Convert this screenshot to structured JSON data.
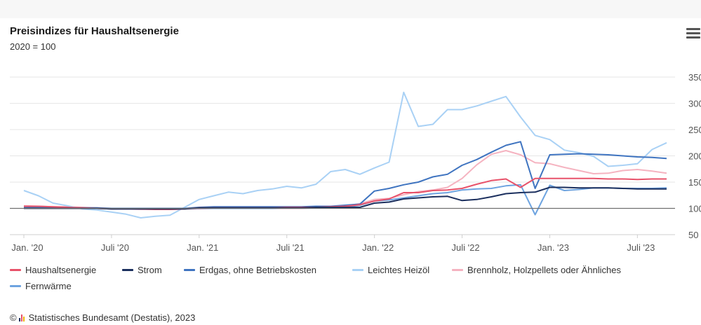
{
  "header": {
    "title": "Preisindizes für Haushaltsenergie",
    "subtitle": "2020 = 100"
  },
  "menu_icon": "hamburger-menu-icon",
  "footer": {
    "copyright_symbol": "©",
    "logo_icon": "destatis-logo-icon",
    "source": "Statistisches Bundesamt (Destatis), 2023"
  },
  "chart_data": {
    "type": "line",
    "title": "Preisindizes für Haushaltsenergie",
    "subtitle": "2020 = 100",
    "xlabel": "",
    "ylabel": "",
    "x": [
      "2020-01",
      "2020-02",
      "2020-03",
      "2020-04",
      "2020-05",
      "2020-06",
      "2020-07",
      "2020-08",
      "2020-09",
      "2020-10",
      "2020-11",
      "2020-12",
      "2021-01",
      "2021-02",
      "2021-03",
      "2021-04",
      "2021-05",
      "2021-06",
      "2021-07",
      "2021-08",
      "2021-09",
      "2021-10",
      "2021-11",
      "2021-12",
      "2022-01",
      "2022-02",
      "2022-03",
      "2022-04",
      "2022-05",
      "2022-06",
      "2022-07",
      "2022-08",
      "2022-09",
      "2022-10",
      "2022-11",
      "2022-12",
      "2023-01",
      "2023-02",
      "2023-03",
      "2023-04",
      "2023-05",
      "2023-06",
      "2023-07",
      "2023-08",
      "2023-09"
    ],
    "x_ticks": [
      {
        "index": 0,
        "label": "Jan. '20"
      },
      {
        "index": 6,
        "label": "Juli '20"
      },
      {
        "index": 12,
        "label": "Jan. '21"
      },
      {
        "index": 18,
        "label": "Juli '21"
      },
      {
        "index": 24,
        "label": "Jan. '22"
      },
      {
        "index": 30,
        "label": "Juli '22"
      },
      {
        "index": 36,
        "label": "Jan. '23"
      },
      {
        "index": 42,
        "label": "Juli '23"
      }
    ],
    "y_ticks": [
      50,
      100,
      150,
      200,
      250,
      300,
      350
    ],
    "ylim": [
      50,
      350
    ],
    "reference_line": 100,
    "grid": true,
    "legend_position": "bottom",
    "series": [
      {
        "name": "Haushaltsenergie",
        "color": "#e8526a",
        "values": [
          104,
          104,
          103,
          102,
          101,
          100,
          99,
          99,
          99,
          98,
          98,
          99,
          101,
          101,
          101,
          101,
          101,
          101,
          102,
          102,
          102,
          103,
          104,
          107,
          114,
          118,
          130,
          130,
          134,
          135,
          138,
          146,
          153,
          156,
          140,
          157,
          157,
          157,
          157,
          157,
          156,
          156,
          155,
          156,
          156
        ]
      },
      {
        "name": "Strom",
        "color": "#1b2f5e",
        "values": [
          100,
          100,
          100,
          100,
          100,
          100,
          99,
          99,
          99,
          99,
          99,
          99,
          101,
          101,
          101,
          101,
          101,
          101,
          101,
          101,
          102,
          102,
          102,
          102,
          110,
          112,
          118,
          120,
          122,
          123,
          115,
          117,
          122,
          128,
          130,
          131,
          140,
          140,
          139,
          139,
          139,
          138,
          137,
          137,
          137
        ]
      },
      {
        "name": "Erdgas, ohne Betriebskosten",
        "color": "#3f74c0",
        "values": [
          101,
          102,
          102,
          101,
          101,
          101,
          100,
          100,
          100,
          100,
          100,
          100,
          102,
          103,
          103,
          103,
          103,
          103,
          103,
          103,
          104,
          104,
          106,
          108,
          133,
          138,
          145,
          150,
          160,
          165,
          182,
          193,
          207,
          220,
          227,
          138,
          202,
          203,
          204,
          203,
          202,
          200,
          198,
          197,
          195
        ]
      },
      {
        "name": "Leichtes Heizöl",
        "color": "#a9d1f5",
        "values": [
          134,
          124,
          110,
          105,
          99,
          97,
          93,
          89,
          82,
          85,
          87,
          102,
          117,
          124,
          131,
          128,
          134,
          137,
          142,
          139,
          146,
          170,
          174,
          165,
          177,
          188,
          321,
          256,
          260,
          288,
          288,
          295,
          304,
          313,
          274,
          239,
          231,
          211,
          206,
          199,
          180,
          182,
          185,
          212,
          225
        ]
      },
      {
        "name": "Brennholz, Holzpellets oder Ähnliches",
        "color": "#f5b3c0",
        "values": [
          105,
          104,
          103,
          103,
          102,
          101,
          100,
          99,
          98,
          98,
          98,
          99,
          99,
          100,
          100,
          100,
          100,
          100,
          100,
          100,
          101,
          102,
          105,
          109,
          117,
          119,
          126,
          132,
          135,
          140,
          157,
          183,
          203,
          210,
          202,
          187,
          185,
          178,
          172,
          166,
          167,
          172,
          174,
          171,
          167
        ]
      },
      {
        "name": "Fernwärme",
        "color": "#6ea4e0",
        "values": [
          102,
          102,
          101,
          101,
          100,
          100,
          99,
          99,
          99,
          99,
          99,
          99,
          100,
          100,
          100,
          100,
          100,
          100,
          101,
          101,
          101,
          101,
          102,
          106,
          114,
          116,
          120,
          124,
          128,
          130,
          135,
          137,
          138,
          143,
          145,
          88,
          144,
          134,
          136,
          139,
          139,
          138,
          138,
          138,
          139
        ]
      }
    ]
  }
}
